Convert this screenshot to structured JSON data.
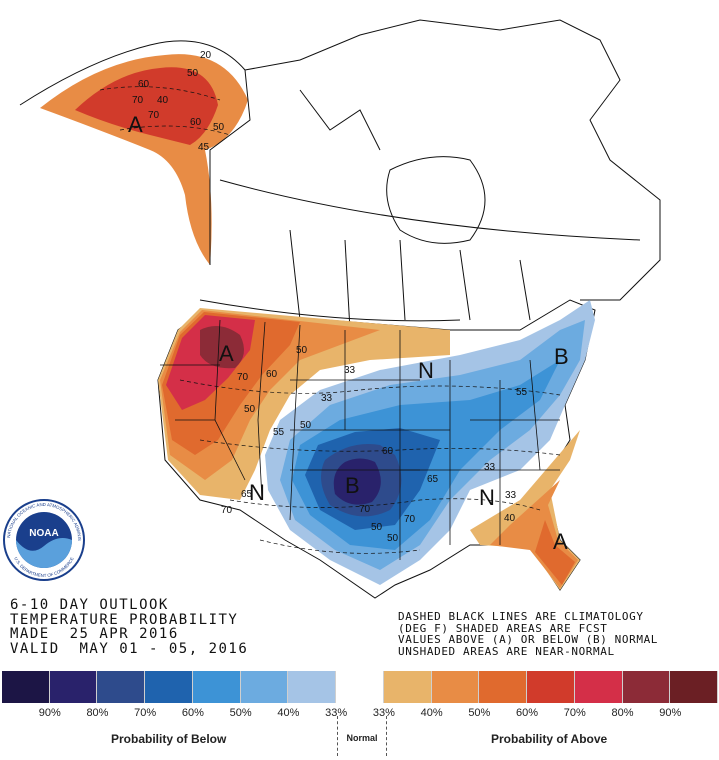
{
  "title": {
    "line1": "6-10 DAY OUTLOOK",
    "line2": "TEMPERATURE PROBABILITY",
    "line3": "MADE  25 APR 2016",
    "line4": "VALID  MAY 01 - 05, 2016"
  },
  "notes": {
    "line1": "DASHED BLACK LINES ARE CLIMATOLOGY",
    "line2": "(DEG F) SHADED AREAS ARE FCST",
    "line3": "VALUES ABOVE (A) OR BELOW (B) NORMAL",
    "line4": "UNSHADED AREAS ARE NEAR-NORMAL"
  },
  "legend": {
    "colors": [
      "#1c1545",
      "#29226b",
      "#2e4b8c",
      "#1f63ae",
      "#3d93d6",
      "#6cabe0",
      "#a5c4e6",
      "#ffffff",
      "#e8b46a",
      "#e88c45",
      "#e06a2e",
      "#d13b2b",
      "#d42f48",
      "#8c2b37",
      "#6b1f24"
    ],
    "ticks": [
      "90%",
      "80%",
      "70%",
      "60%",
      "50%",
      "40%",
      "33%",
      "33%",
      "40%",
      "50%",
      "60%",
      "70%",
      "80%",
      "90%"
    ],
    "below_label": "Probability of Below",
    "normal_label": "Normal",
    "above_label": "Probability of Above"
  },
  "map": {
    "region_labels": {
      "alaska_a": "A",
      "northwest_a": "A",
      "central_b": "B",
      "northeast_b": "B",
      "southeast_a": "A",
      "southwest_n": "N",
      "greatlakes_n": "N",
      "southeast_n": "N"
    },
    "contour_labels": [
      "60",
      "50",
      "70",
      "40",
      "70",
      "60",
      "50",
      "45",
      "20",
      "50",
      "70",
      "60",
      "50",
      "33",
      "55",
      "50",
      "65",
      "70",
      "33",
      "55",
      "60",
      "65",
      "70",
      "50",
      "50",
      "70",
      "33",
      "33",
      "40"
    ]
  },
  "logo": {
    "text": "NOAA",
    "ring_text": "NATIONAL OCEANIC AND ATMOSPHERIC ADMINISTRATION",
    "ring_text_bottom": "U.S. DEPARTMENT OF COMMERCE"
  }
}
